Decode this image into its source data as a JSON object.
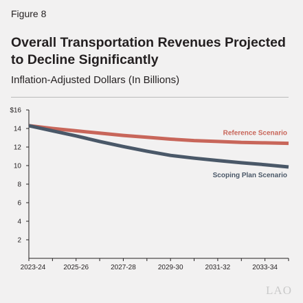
{
  "figure_label": "Figure 8",
  "watermark": "LAO",
  "chart_data": {
    "type": "line",
    "title": "Overall Transportation Revenues Projected to Decline Significantly",
    "subtitle": "Inflation-Adjusted Dollars (In Billions)",
    "x": [
      "2023-24",
      "2024-25",
      "2025-26",
      "2026-27",
      "2027-28",
      "2028-29",
      "2029-30",
      "2030-31",
      "2031-32",
      "2032-33",
      "2033-34",
      "2034-35"
    ],
    "xtick_labels": [
      "2023-24",
      "2025-26",
      "2027-28",
      "2029-30",
      "2031-32",
      "2033-34"
    ],
    "yticks": [
      2,
      4,
      6,
      8,
      10,
      12,
      14,
      16
    ],
    "ytick_labels": [
      "2",
      "4",
      "6",
      "8",
      "10",
      "12",
      "14",
      "$16"
    ],
    "ylim": [
      0,
      16
    ],
    "grid": false,
    "series": [
      {
        "name": "Reference Scenario",
        "color": "#c8665a",
        "values": [
          14.3,
          14.0,
          13.75,
          13.5,
          13.25,
          13.05,
          12.85,
          12.7,
          12.6,
          12.5,
          12.45,
          12.4
        ]
      },
      {
        "name": "Scoping Plan Scenario",
        "color": "#4a5868",
        "values": [
          14.3,
          13.75,
          13.2,
          12.6,
          12.05,
          11.55,
          11.1,
          10.8,
          10.55,
          10.3,
          10.1,
          9.85
        ]
      }
    ]
  }
}
